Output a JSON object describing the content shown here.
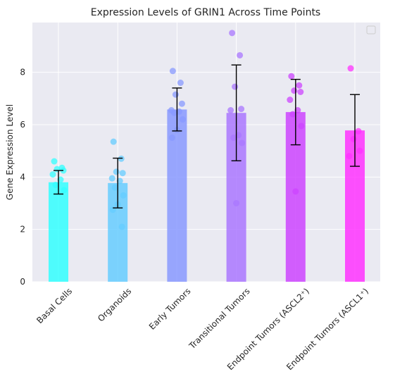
{
  "chart_data": {
    "type": "bar",
    "title": "Expression Levels of GRIN1 Across Time Points",
    "xlabel": "",
    "ylabel": "Gene Expression Level",
    "ylim": [
      0,
      9.9
    ],
    "yticks": [
      0,
      2,
      4,
      6,
      8
    ],
    "grid": true,
    "legend": "top-right (empty)",
    "categories": [
      "Basal Cells",
      "Organoids",
      "Early Tumors",
      "Transitional Tumors",
      "Endpoint Tumors (ASCL2⁺)",
      "Endpoint Tumors (ASCL1⁺)"
    ],
    "colors": [
      "#33ffff",
      "#66ccff",
      "#8899ff",
      "#aa77ff",
      "#cc44ff",
      "#ff33ff"
    ],
    "values": [
      3.8,
      3.77,
      6.58,
      6.45,
      6.48,
      5.78
    ],
    "errors": [
      0.45,
      0.95,
      0.82,
      1.83,
      1.25,
      1.37
    ],
    "points": [
      [
        4.6,
        4.35,
        4.3,
        4.25,
        4.1,
        3.9,
        3.7,
        3.5
      ],
      [
        5.35,
        4.7,
        4.2,
        4.15,
        3.95,
        3.85,
        3.6,
        3.3,
        2.95,
        2.75,
        2.1
      ],
      [
        8.05,
        7.6,
        7.15,
        6.8,
        6.55,
        6.5,
        6.45,
        6.2,
        5.8,
        5.5
      ],
      [
        9.5,
        8.65,
        7.45,
        6.6,
        6.55,
        5.6,
        5.5,
        5.3,
        3.0
      ],
      [
        7.85,
        7.5,
        7.3,
        7.25,
        6.95,
        6.55,
        6.4,
        5.95,
        3.45
      ],
      [
        8.15,
        5.75,
        5.45,
        5.0,
        4.8
      ]
    ]
  }
}
